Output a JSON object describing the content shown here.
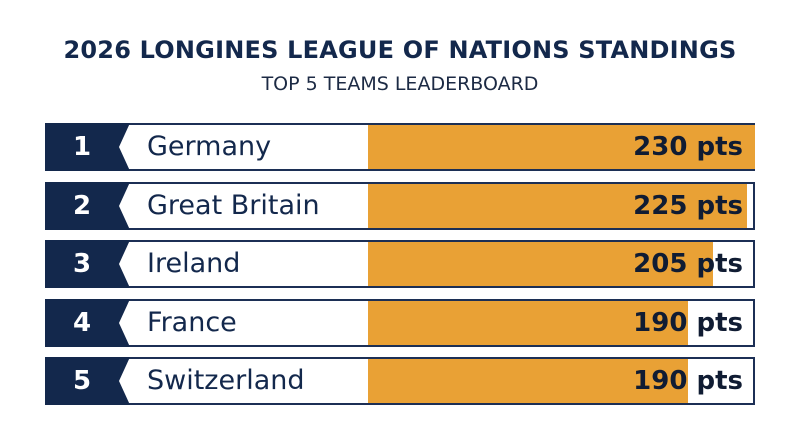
{
  "header": {
    "title": "2026 LONGINES LEAGUE OF NATIONS STANDINGS",
    "subtitle": "TOP 5 TEAMS LEADERBOARD"
  },
  "colors": {
    "navy": "#13284c",
    "bar": "#e9a135",
    "border": "#1c2f55"
  },
  "chart_data": {
    "type": "bar",
    "orientation": "horizontal",
    "title": "2026 LONGINES LEAGUE OF NATIONS STANDINGS",
    "subtitle": "TOP 5 TEAMS LEADERBOARD",
    "xlim": [
      0,
      230
    ],
    "grid": false,
    "rows": [
      {
        "rank": "1",
        "team": "Germany",
        "value": 230,
        "label": "230 pts"
      },
      {
        "rank": "2",
        "team": "Great Britain",
        "value": 225,
        "label": "225 pts"
      },
      {
        "rank": "3",
        "team": "Ireland",
        "value": 205,
        "label": "205 pts"
      },
      {
        "rank": "4",
        "team": "France",
        "value": 190,
        "label": "190 pts"
      },
      {
        "rank": "5",
        "team": "Switzerland",
        "value": 190,
        "label": "190 pts"
      }
    ]
  }
}
